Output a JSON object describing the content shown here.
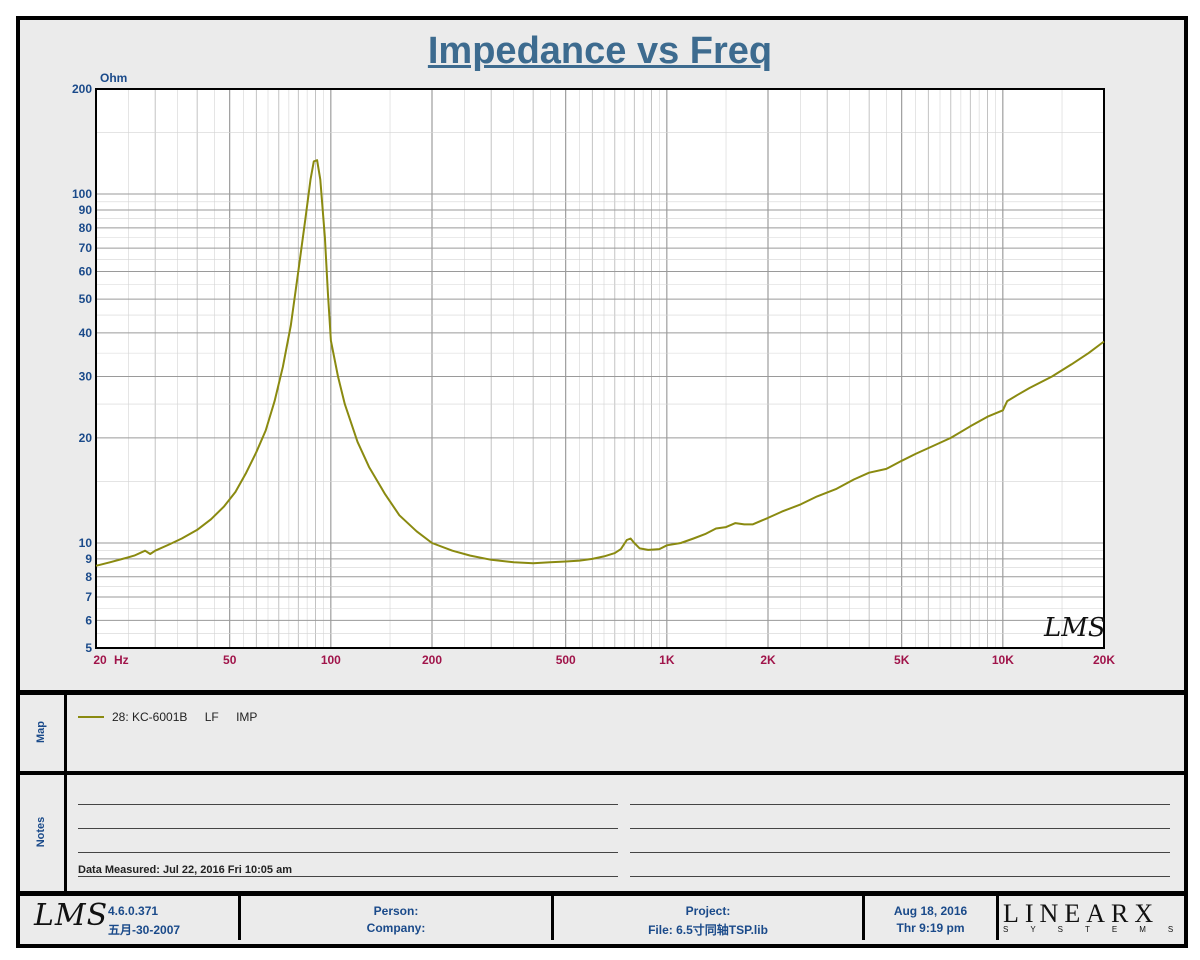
{
  "chart_data": {
    "type": "line",
    "title": "Impedance vs Freq",
    "ylabel": "Ohm",
    "xlabel": "Hz",
    "xscale": "log",
    "yscale": "log",
    "xlim": [
      20,
      20000
    ],
    "ylim": [
      5,
      200
    ],
    "grid": true,
    "x_tick_labels": [
      {
        "v": 20,
        "t": "20"
      },
      {
        "v": 50,
        "t": "50"
      },
      {
        "v": 100,
        "t": "100"
      },
      {
        "v": 200,
        "t": "200"
      },
      {
        "v": 500,
        "t": "500"
      },
      {
        "v": 1000,
        "t": "1K"
      },
      {
        "v": 2000,
        "t": "2K"
      },
      {
        "v": 5000,
        "t": "5K"
      },
      {
        "v": 10000,
        "t": "10K"
      },
      {
        "v": 20000,
        "t": "20K"
      }
    ],
    "y_tick_labels": [
      {
        "v": 200,
        "t": "200"
      },
      {
        "v": 100,
        "t": "100"
      },
      {
        "v": 90,
        "t": "90"
      },
      {
        "v": 80,
        "t": "80"
      },
      {
        "v": 70,
        "t": "70"
      },
      {
        "v": 60,
        "t": "60"
      },
      {
        "v": 50,
        "t": "50"
      },
      {
        "v": 40,
        "t": "40"
      },
      {
        "v": 30,
        "t": "30"
      },
      {
        "v": 20,
        "t": "20"
      },
      {
        "v": 10,
        "t": "10"
      },
      {
        "v": 9,
        "t": "9"
      },
      {
        "v": 8,
        "t": "8"
      },
      {
        "v": 7,
        "t": "7"
      },
      {
        "v": 6,
        "t": "6"
      },
      {
        "v": 5,
        "t": "5"
      }
    ],
    "series": [
      {
        "name": "28: KC-6001B  LF  IMP",
        "color": "#8a8a10",
        "points": [
          [
            20,
            8.6
          ],
          [
            22,
            8.8
          ],
          [
            24,
            9.0
          ],
          [
            26,
            9.2
          ],
          [
            28,
            9.5
          ],
          [
            29,
            9.3
          ],
          [
            30,
            9.5
          ],
          [
            33,
            9.9
          ],
          [
            36,
            10.3
          ],
          [
            40,
            10.9
          ],
          [
            44,
            11.7
          ],
          [
            48,
            12.7
          ],
          [
            52,
            14.0
          ],
          [
            56,
            15.9
          ],
          [
            60,
            18.2
          ],
          [
            64,
            21.0
          ],
          [
            68,
            25.5
          ],
          [
            72,
            32.0
          ],
          [
            76,
            42.0
          ],
          [
            80,
            60.0
          ],
          [
            84,
            85.0
          ],
          [
            87,
            110.0
          ],
          [
            89,
            124.0
          ],
          [
            91,
            125.0
          ],
          [
            93,
            110.0
          ],
          [
            96,
            75.0
          ],
          [
            98,
            52.0
          ],
          [
            100,
            38.0
          ],
          [
            105,
            30.0
          ],
          [
            110,
            25.0
          ],
          [
            120,
            19.5
          ],
          [
            130,
            16.5
          ],
          [
            145,
            13.8
          ],
          [
            160,
            12.0
          ],
          [
            180,
            10.8
          ],
          [
            200,
            10.0
          ],
          [
            230,
            9.5
          ],
          [
            260,
            9.2
          ],
          [
            300,
            8.95
          ],
          [
            350,
            8.8
          ],
          [
            400,
            8.75
          ],
          [
            450,
            8.8
          ],
          [
            500,
            8.85
          ],
          [
            550,
            8.9
          ],
          [
            600,
            9.0
          ],
          [
            650,
            9.15
          ],
          [
            700,
            9.35
          ],
          [
            730,
            9.6
          ],
          [
            760,
            10.2
          ],
          [
            780,
            10.3
          ],
          [
            800,
            10.0
          ],
          [
            830,
            9.65
          ],
          [
            880,
            9.55
          ],
          [
            950,
            9.6
          ],
          [
            1000,
            9.85
          ],
          [
            1100,
            10.0
          ],
          [
            1200,
            10.3
          ],
          [
            1300,
            10.6
          ],
          [
            1400,
            11.0
          ],
          [
            1500,
            11.1
          ],
          [
            1600,
            11.4
          ],
          [
            1700,
            11.3
          ],
          [
            1800,
            11.3
          ],
          [
            2000,
            11.8
          ],
          [
            2200,
            12.3
          ],
          [
            2500,
            12.9
          ],
          [
            2800,
            13.6
          ],
          [
            3200,
            14.3
          ],
          [
            3600,
            15.2
          ],
          [
            4000,
            15.9
          ],
          [
            4500,
            16.3
          ],
          [
            5000,
            17.2
          ],
          [
            5500,
            18.0
          ],
          [
            6000,
            18.7
          ],
          [
            7000,
            20.0
          ],
          [
            8000,
            21.6
          ],
          [
            9000,
            23.0
          ],
          [
            10000,
            24.0
          ],
          [
            10300,
            25.5
          ],
          [
            11000,
            26.5
          ],
          [
            12000,
            27.8
          ],
          [
            14000,
            30.0
          ],
          [
            16000,
            32.5
          ],
          [
            18000,
            35.0
          ],
          [
            20000,
            37.8
          ]
        ]
      }
    ]
  },
  "page": {
    "title": "Impedance vs Freq",
    "y_unit": "Ohm",
    "x_unit": "Hz",
    "watermark": "LMS"
  },
  "map": {
    "label": "Map",
    "entry_id": "28: KC-6001B",
    "entry_range": "LF",
    "entry_type": "IMP"
  },
  "notes": {
    "label": "Notes",
    "data_measured": "Data Measured: Jul 22, 2016  Fri 10:05 am"
  },
  "footer": {
    "logo": "LMS",
    "version": "4.6.0.371",
    "version_date": "五月-30-2007",
    "person": "Person:",
    "company": "Company:",
    "project": "Project:",
    "file": "File: 6.5寸同轴TSP.lib",
    "date": "Aug 18, 2016",
    "time": "Thr  9:19 pm",
    "brand": "LINEARX",
    "brand_sub": "SYSTEMS"
  }
}
